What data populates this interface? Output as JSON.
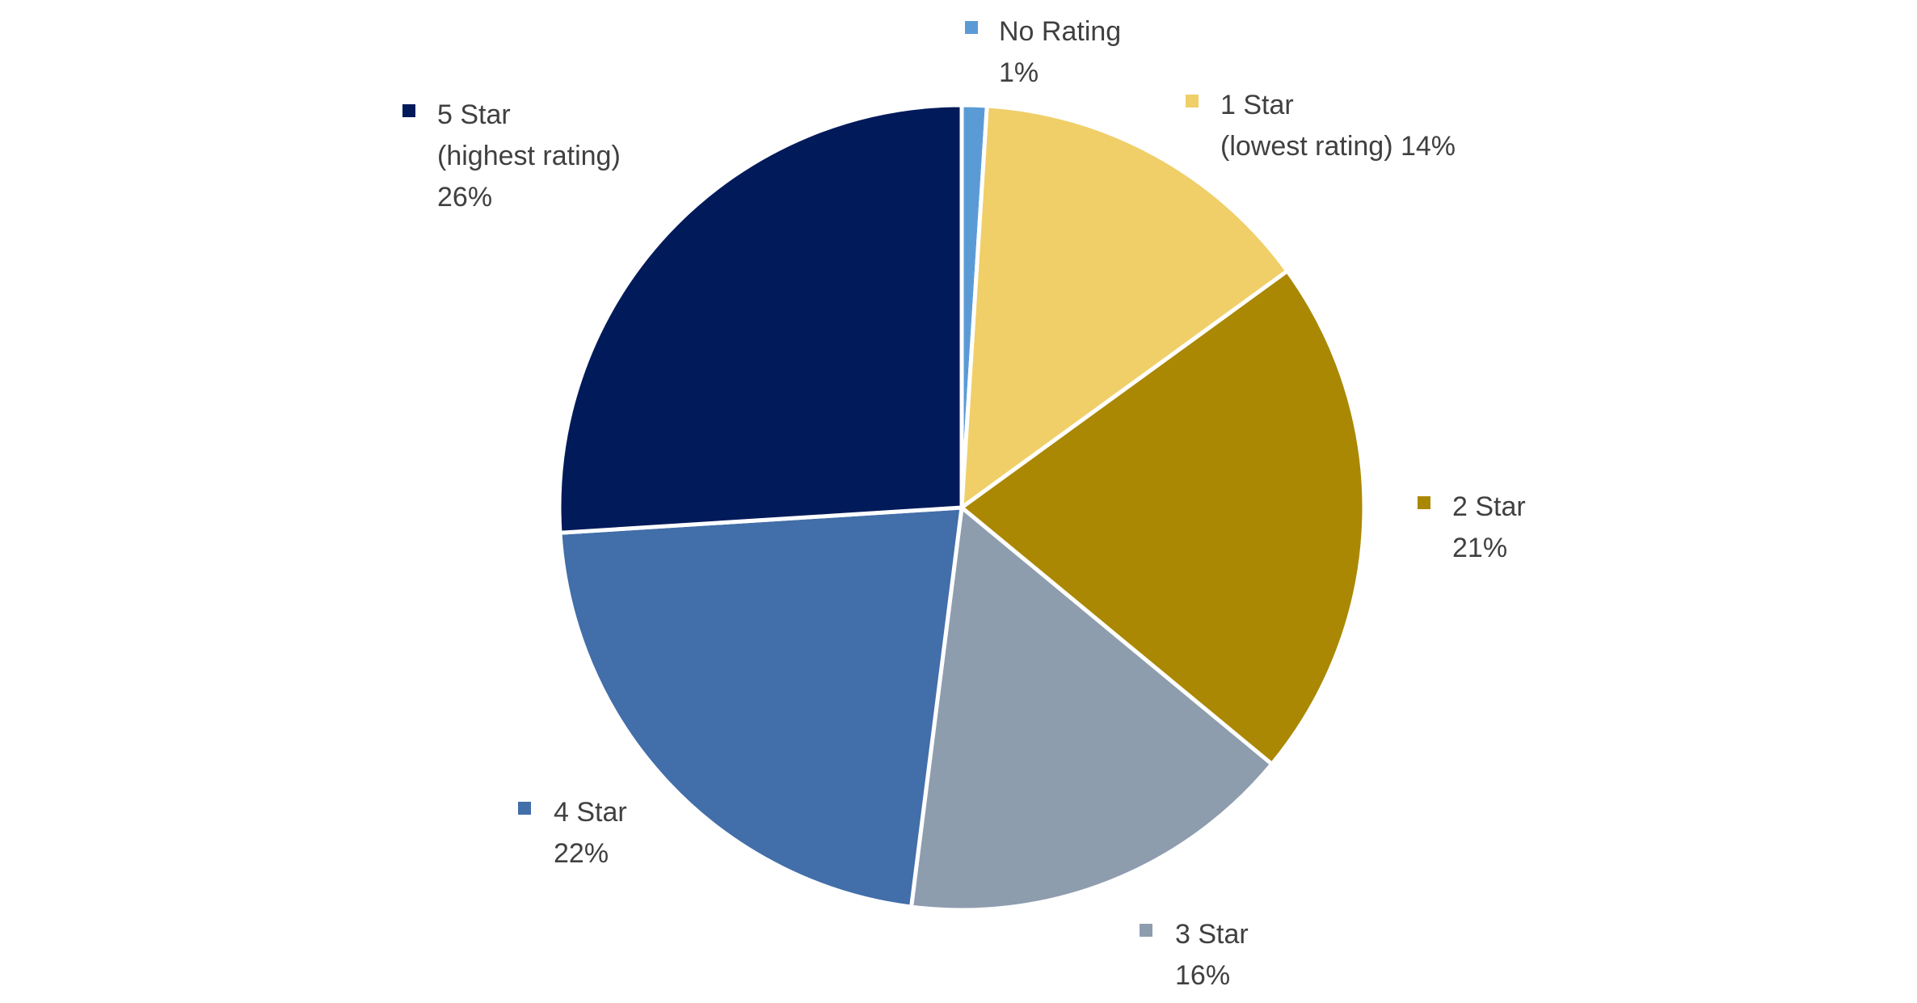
{
  "chart_data": {
    "type": "pie",
    "title": "",
    "start_angle_deg": 0,
    "direction": "clockwise",
    "slices": [
      {
        "label": "No Rating",
        "label_lines": [
          "No Rating",
          "1%"
        ],
        "value": 1,
        "color": "#5B9BD5"
      },
      {
        "label": "1 Star (lowest rating)",
        "label_lines": [
          "1 Star",
          "(lowest rating) 14%"
        ],
        "value": 14,
        "color": "#F0CF69"
      },
      {
        "label": "2 Star",
        "label_lines": [
          "2 Star",
          "21%"
        ],
        "value": 21,
        "color": "#AA8804"
      },
      {
        "label": "3 Star",
        "label_lines": [
          "3 Star",
          "16%"
        ],
        "value": 16,
        "color": "#8E9DAE"
      },
      {
        "label": "4 Star",
        "label_lines": [
          "4 Star",
          "22%"
        ],
        "value": 22,
        "color": "#426EA9"
      },
      {
        "label": "5 Star (highest rating)",
        "label_lines": [
          "5 Star",
          "(highest rating)",
          "26%"
        ],
        "value": 26,
        "color": "#011A5A"
      }
    ]
  }
}
